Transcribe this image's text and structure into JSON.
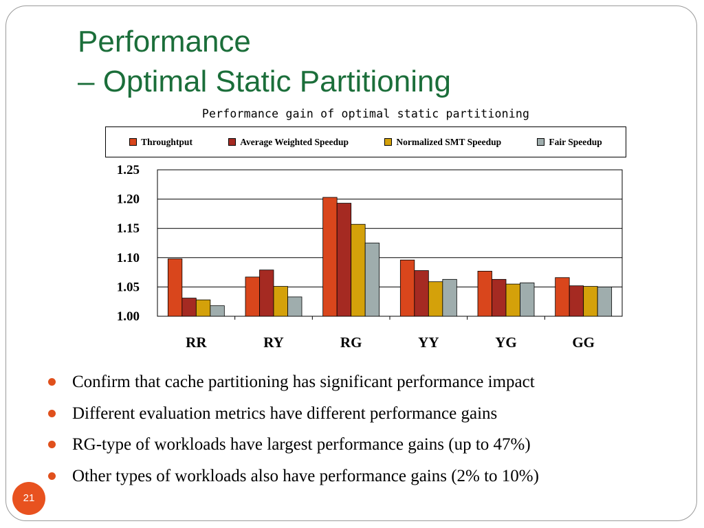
{
  "slide": {
    "title_line1": "Performance",
    "title_line2": "– Optimal Static Partitioning",
    "page_number": "21",
    "accent_color": "#1b6e3a",
    "bullet_color": "#e0501c"
  },
  "bullets": [
    "Confirm that cache partitioning has significant performance impact",
    "Different evaluation metrics have different performance gains",
    "RG-type of workloads have largest performance gains (up to 47%)",
    "Other types of workloads also have performance gains (2% to 10%)"
  ],
  "chart_data": {
    "type": "bar",
    "title": "Performance gain of optimal static partitioning",
    "xlabel": "",
    "ylabel": "",
    "categories": [
      "RR",
      "RY",
      "RG",
      "YY",
      "YG",
      "GG"
    ],
    "ylim": [
      1.0,
      1.25
    ],
    "yticks": [
      "1.00",
      "1.05",
      "1.10",
      "1.15",
      "1.20",
      "1.25"
    ],
    "grid": true,
    "legend_position": "top",
    "series": [
      {
        "name": "Throughtput",
        "color": "#d9461c",
        "values": [
          1.098,
          1.067,
          1.203,
          1.096,
          1.077,
          1.066
        ]
      },
      {
        "name": "Average Weighted Speedup",
        "color": "#a52a22",
        "values": [
          1.031,
          1.079,
          1.193,
          1.078,
          1.063,
          1.052
        ]
      },
      {
        "name": "Normalized SMT Speedup",
        "color": "#d4a10a",
        "values": [
          1.028,
          1.051,
          1.157,
          1.059,
          1.055,
          1.051
        ]
      },
      {
        "name": "Fair Speedup",
        "color": "#9fadad",
        "values": [
          1.018,
          1.033,
          1.125,
          1.063,
          1.057,
          1.05
        ]
      }
    ]
  }
}
